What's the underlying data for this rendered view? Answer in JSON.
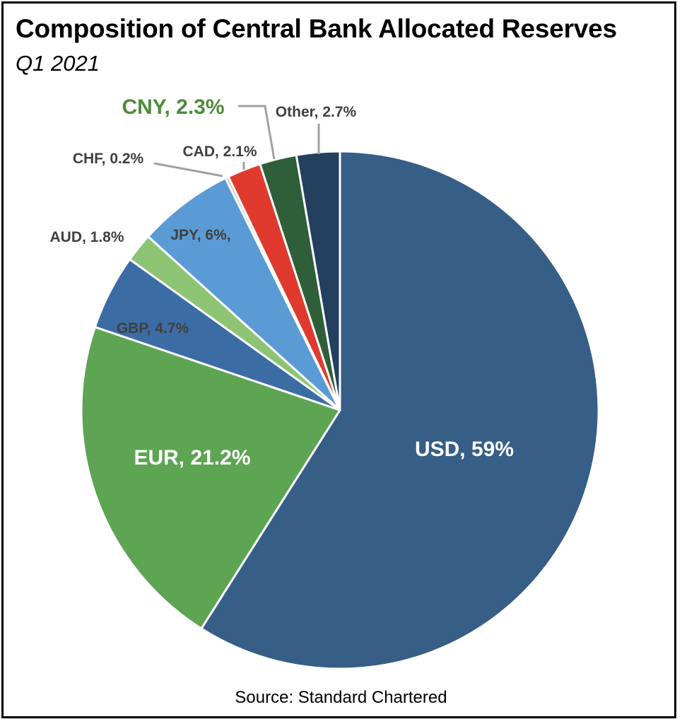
{
  "chart_data": {
    "type": "pie",
    "title": "Composition of Central Bank Allocated Reserves",
    "subtitle": "Q1 2021",
    "source": "Source: Standard Chartered",
    "slices": [
      {
        "label": "USD",
        "value": 59,
        "display": "USD, 59%",
        "color": "#365E87"
      },
      {
        "label": "EUR",
        "value": 21.2,
        "display": "EUR, 21.2%",
        "color": "#5DA453"
      },
      {
        "label": "GBP",
        "value": 4.7,
        "display": "GBP, 4.7%",
        "color": "#3C6CA4"
      },
      {
        "label": "AUD",
        "value": 1.8,
        "display": "AUD, 1.8%",
        "color": "#8CC473"
      },
      {
        "label": "JPY",
        "value": 6,
        "display": "JPY, 6%,",
        "color": "#5B9BD5"
      },
      {
        "label": "CHF",
        "value": 0.2,
        "display": "CHF, 0.2%",
        "color": "#C0C0C0"
      },
      {
        "label": "CAD",
        "value": 2.1,
        "display": "CAD, 2.1%",
        "color": "#E03A2F"
      },
      {
        "label": "CNY",
        "value": 2.3,
        "display": "CNY, 2.3%",
        "color": "#2F5F38"
      },
      {
        "label": "Other",
        "value": 2.7,
        "display": "Other, 2.7%",
        "color": "#253F5F"
      }
    ],
    "label_colors": {
      "inside": "#FFFFFF",
      "outside": "#404040",
      "highlight": "#4E8C3A"
    },
    "leader_line_color": "#A0A0A0"
  }
}
